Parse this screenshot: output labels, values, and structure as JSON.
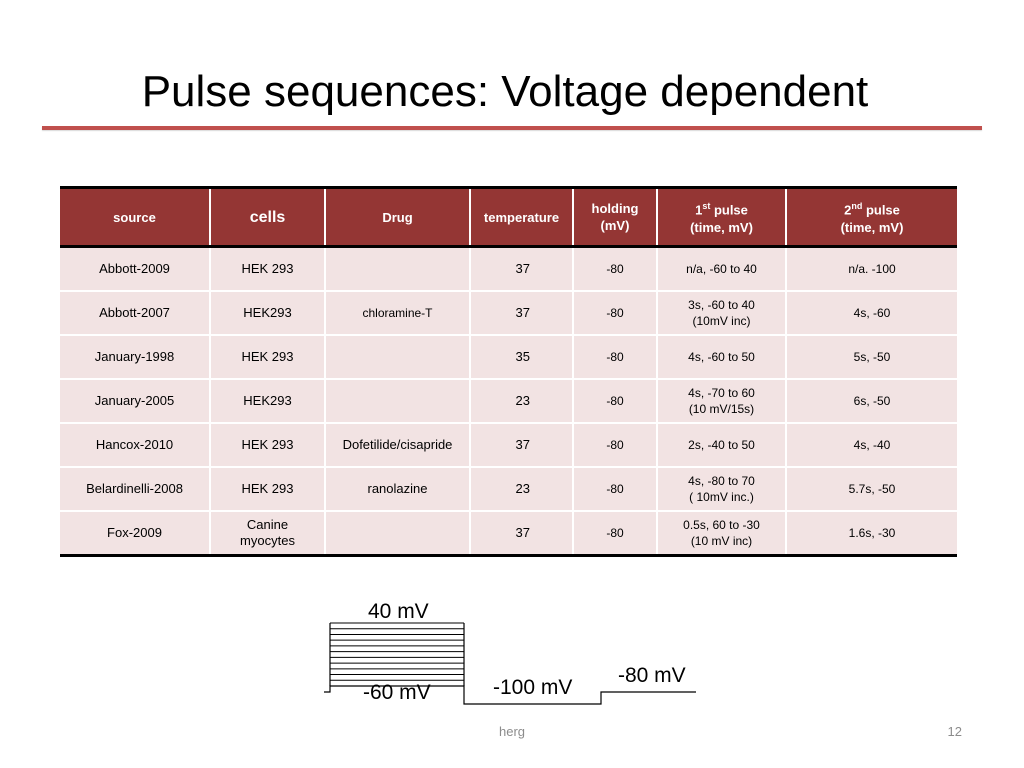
{
  "title": "Pulse sequences: Voltage dependent",
  "table": {
    "headers": {
      "source": "source",
      "cells": "cells",
      "drug": "Drug",
      "temperature": "temperature",
      "holding_l1": "holding",
      "holding_l2": "(mV)",
      "pulse1_num": "1",
      "pulse1_sup": "st",
      "pulse1_word": " pulse",
      "pulse1_l2": "(time, mV)",
      "pulse2_num": "2",
      "pulse2_sup": "nd",
      "pulse2_word": " pulse",
      "pulse2_l2": "(time, mV)"
    },
    "rows": [
      {
        "source": "Abbott-2009",
        "cells": "HEK 293",
        "drug": "",
        "temperature": "37",
        "holding": "-80",
        "pulse1": "n/a, -60 to 40",
        "pulse2": "n/a. -100"
      },
      {
        "source": "Abbott-2007",
        "cells": "HEK293",
        "drug": "chloramine-T",
        "temperature": "37",
        "holding": "-80",
        "pulse1": "3s, -60 to 40\n(10mV inc)",
        "pulse2": "4s, -60"
      },
      {
        "source": "January-1998",
        "cells": "HEK 293",
        "drug": "",
        "temperature": "35",
        "holding": "-80",
        "pulse1": "4s,  -60 to 50",
        "pulse2": "5s,  -50"
      },
      {
        "source": "January-2005",
        "cells": "HEK293",
        "drug": "",
        "temperature": "23",
        "holding": "-80",
        "pulse1": "4s, -70 to 60\n(10 mV/15s)",
        "pulse2": "6s, -50"
      },
      {
        "source": "Hancox-2010",
        "cells": "HEK 293",
        "drug": "Dofetilide/cisapride",
        "temperature": "37",
        "holding": "-80",
        "pulse1": "2s, -40 to 50",
        "pulse2": "4s, -40"
      },
      {
        "source": "Belardinelli-2008",
        "cells": "HEK 293",
        "drug": "ranolazine",
        "temperature": "23",
        "holding": "-80",
        "pulse1": "4s, -80 to 70\n( 10mV inc.)",
        "pulse2": "5.7s, -50"
      },
      {
        "source": "Fox-2009",
        "cells": "Canine\nmyocytes",
        "drug": "",
        "temperature": "37",
        "holding": "-80",
        "pulse1": "0.5s, 60 to -30\n(10 mV inc)",
        "pulse2": "1.6s, -30"
      }
    ]
  },
  "diagram": {
    "label_top": "40 mV",
    "label_bottom": "-60 mV",
    "label_middle": "-100 mV",
    "label_end": "-80 mV",
    "step_count": 11
  },
  "footer": {
    "text": "herg",
    "page": "12"
  }
}
